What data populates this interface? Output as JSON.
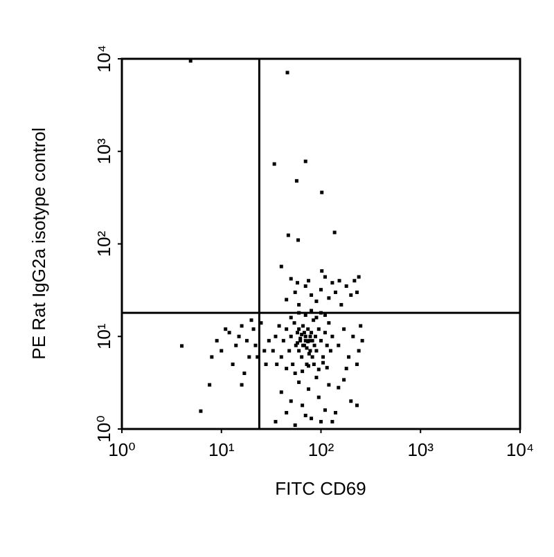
{
  "chart_data": {
    "type": "scatter",
    "x_label": "FITC CD69",
    "y_label": "PE Rat IgG2a isotype control",
    "log_scale": true,
    "color": "#000000",
    "xlim": [
      1,
      10000
    ],
    "ylim": [
      1,
      10000
    ],
    "xticks": [
      {
        "value": 1,
        "label": "10⁰"
      },
      {
        "value": 10,
        "label": "10¹"
      },
      {
        "value": 100,
        "label": "10²"
      },
      {
        "value": 1000,
        "label": "10³"
      },
      {
        "value": 10000,
        "label": "10⁴"
      }
    ],
    "yticks": [
      {
        "value": 1,
        "label": "10⁰"
      },
      {
        "value": 10,
        "label": "10¹"
      },
      {
        "value": 100,
        "label": "10²"
      },
      {
        "value": 1000,
        "label": "10³"
      },
      {
        "value": 10000,
        "label": "10⁴"
      }
    ],
    "quadrant_gates": {
      "x": 24,
      "y": 18
    },
    "x": [
      4.9,
      46,
      34,
      70,
      57,
      102,
      137,
      59,
      47,
      4.0,
      6.2,
      7.6,
      40,
      102,
      217,
      153,
      58,
      12,
      14,
      16,
      18,
      19,
      21,
      10,
      9,
      13,
      17,
      22,
      20,
      15,
      11,
      23,
      8,
      16,
      25,
      27,
      30,
      28,
      35,
      45,
      55,
      65,
      80,
      95,
      110,
      130,
      150,
      40,
      60,
      75,
      90,
      120,
      170,
      200,
      230,
      50,
      70,
      100,
      140,
      45,
      55,
      60,
      70,
      80,
      90,
      100,
      120,
      140,
      160,
      180,
      200,
      230,
      240,
      50,
      75,
      110,
      130,
      150,
      170,
      190,
      210,
      240,
      250,
      230,
      260,
      180,
      40,
      42,
      45,
      48,
      50,
      52,
      54,
      56,
      58,
      60,
      62,
      64,
      66,
      68,
      70,
      72,
      74,
      76,
      78,
      80,
      82,
      84,
      86,
      88,
      90,
      95,
      100,
      105,
      110,
      115,
      120,
      125,
      130,
      45,
      55,
      65,
      75,
      85,
      95,
      105,
      115,
      50,
      60,
      70,
      80,
      90,
      100,
      110,
      35,
      38,
      33,
      36,
      58,
      62,
      66,
      70,
      74,
      78,
      68,
      72,
      64,
      76,
      60,
      82
    ],
    "values": [
      9500,
      7100,
      730,
      780,
      480,
      360,
      133,
      110,
      124,
      7.9,
      1.56,
      3.0,
      57,
      51,
      40,
      40,
      38,
      11,
      8,
      13,
      9,
      6,
      12,
      7,
      9,
      5,
      4,
      8,
      15,
      10,
      12,
      6,
      6,
      3,
      14,
      7,
      9,
      5,
      1.2,
      1.5,
      1.1,
      1.8,
      1.3,
      2.2,
      1.6,
      1.2,
      2.8,
      2.5,
      3.2,
      2.7,
      3.6,
      3.0,
      3.4,
      2.0,
      1.8,
      2.0,
      1.4,
      1.2,
      1.5,
      25,
      30,
      22,
      35,
      28,
      24,
      32,
      26,
      30,
      22,
      35,
      28,
      30,
      44,
      42,
      40,
      44,
      38,
      8,
      12,
      6,
      10,
      7,
      13,
      5,
      9,
      4.5,
      6,
      9,
      12,
      7,
      10,
      5,
      14,
      8,
      11,
      7,
      9,
      6,
      13,
      8,
      10,
      5,
      12,
      9,
      7,
      11,
      6,
      15,
      8,
      10,
      7,
      12,
      9,
      6,
      11,
      8,
      14,
      7,
      10,
      4.5,
      4,
      4.2,
      4.8,
      5,
      4.4,
      5.2,
      4.6,
      16,
      18,
      17,
      19,
      16,
      18,
      17,
      10,
      13,
      7,
      5,
      8.5,
      9.5,
      8,
      9,
      8.8,
      10,
      11,
      7.5,
      10.5,
      6.5,
      12,
      9
    ]
  }
}
